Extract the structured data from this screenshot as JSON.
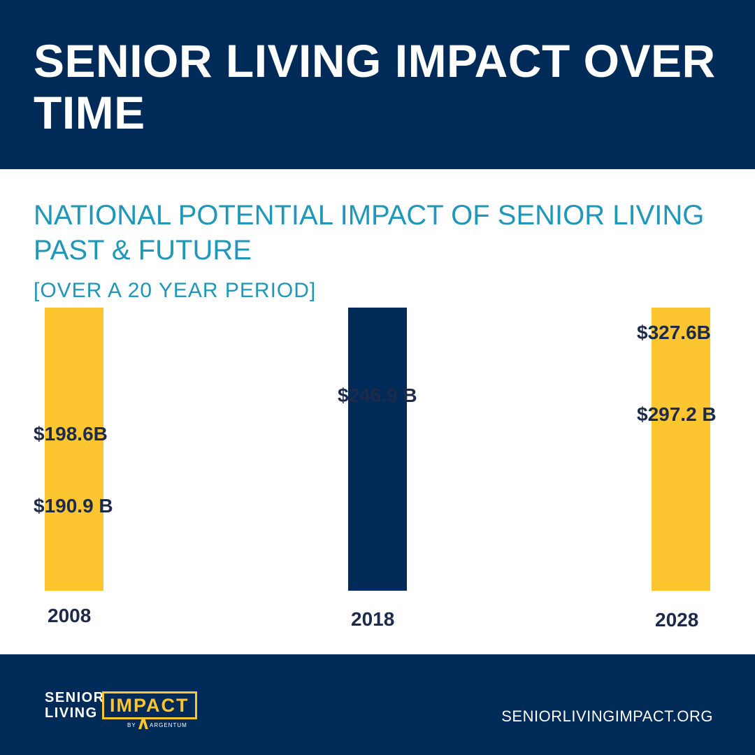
{
  "header": {
    "title": "SENIOR LIVING IMPACT OVER TIME"
  },
  "chart_data": {
    "type": "bar",
    "title": "NATIONAL POTENTIAL IMPACT OF SENIOR LIVING PAST & FUTURE",
    "subtitle": "[OVER A 20 YEAR PERIOD]",
    "categories": [
      "2008",
      "2018",
      "2028"
    ],
    "bars": [
      {
        "category": "2008",
        "value": 190.9,
        "label": "$190.9 B",
        "color": "#fdc52f"
      },
      {
        "category": "2018",
        "value": 246.9,
        "label": "$246.9 B",
        "color": "#002a57"
      },
      {
        "category": "2028",
        "value": 297.2,
        "label": "$297.2 B",
        "color": "#fdc52f"
      }
    ],
    "upper_values": [
      {
        "category": "2008",
        "value": 198.6,
        "label": "$198.6B"
      },
      {
        "category": "2028",
        "value": 327.6,
        "label": "$327.6B"
      }
    ],
    "band_color": "#b3b3b3",
    "grid": false,
    "legend": "none"
  },
  "footer": {
    "logo": {
      "line1": "SENIOR",
      "line2": "LIVING",
      "impact": "IMPACT",
      "by": "BY",
      "brand": "ARGENTUM"
    },
    "website": "SENIORLIVINGIMPACT.ORG"
  },
  "colors": {
    "navy": "#002a57",
    "teal": "#1f97b8",
    "gold": "#fdc52f",
    "gray": "#b3b3b3"
  }
}
